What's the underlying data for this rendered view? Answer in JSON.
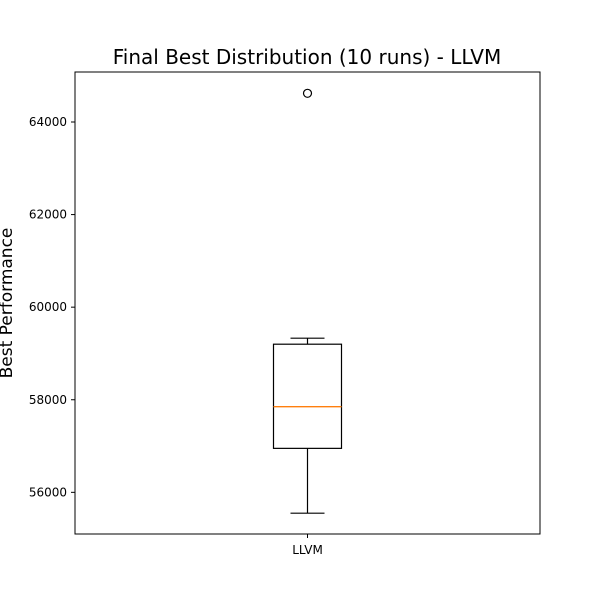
{
  "chart_data": {
    "type": "box",
    "title": "Final Best Distribution (10 runs) - LLVM",
    "xlabel": "",
    "ylabel": "Best Performance",
    "categories": [
      "LLVM"
    ],
    "boxes": [
      {
        "label": "LLVM",
        "whisker_low": 55550,
        "q1": 56950,
        "median": 57850,
        "q3": 59200,
        "whisker_high": 59330,
        "outliers": [
          64620
        ]
      }
    ],
    "ylim": [
      55100,
      65080
    ],
    "yticks": [
      56000,
      58000,
      60000,
      62000,
      64000
    ],
    "ytick_labels": [
      "56000",
      "58000",
      "60000",
      "62000",
      "64000"
    ],
    "grid": false,
    "colors": {
      "box": "#000000",
      "median": "#ff7f0e",
      "outlier": "#000000"
    }
  }
}
